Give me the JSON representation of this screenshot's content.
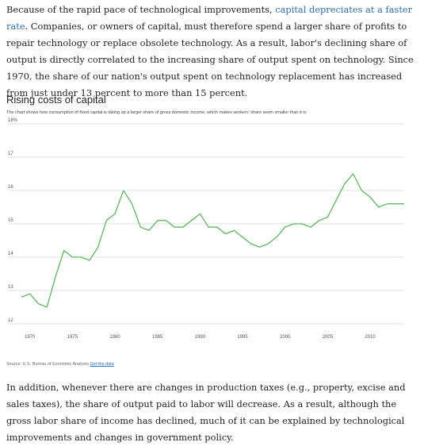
{
  "article": {
    "para1_before": "Because of the rapid pace of technological improvements, ",
    "para1_link": "capital depreciates at a faster rate",
    "para1_after": ". Companies, or owners of capital, must therefore spend a larger share of profits to repair technology or replace obsolete technology. As a result, labor's declining share of output is directly correlated to the increasing share of output spent on technology. Since 1970, the share of our nation's output spent on technology replacement has increased from just under 13 percent to more than 15 percent.",
    "para2": "In addition, whenever there are changes in production taxes (e.g., property, excise and sales taxes), the share of output paid to labor will decrease. As a result, although the gross labor share of income has declined, much of it can be explained by technological improvements and changes in government policy."
  },
  "chart_data": {
    "type": "line",
    "title": "Rising costs of capital",
    "subtitle": "The chart shows how consumption of fixed capital is taking up a larger share of gross domestic income, which makes workers' share seem smaller than it is.",
    "source_label": "Source: U.S. Bureau of Economic Analysis",
    "source_link": "Get the data",
    "xlabel": "",
    "ylabel": "",
    "xlim": [
      1969,
      2014
    ],
    "ylim": [
      12,
      18
    ],
    "x_ticks": [
      "1970",
      "1975",
      "1980",
      "1985",
      "1990",
      "1995",
      "2000",
      "2005",
      "2010"
    ],
    "y_ticks": [
      "18%",
      "17",
      "16",
      "15",
      "14",
      "13",
      "12"
    ],
    "grid": true,
    "line_color": "#5cb85c",
    "series": [
      {
        "x": [
          1969,
          1970,
          1971,
          1972,
          1973,
          1974,
          1975,
          1976,
          1977,
          1978,
          1979,
          1980,
          1981,
          1982,
          1983,
          1984,
          1985,
          1986,
          1987,
          1988,
          1989,
          1990,
          1991,
          1992,
          1993,
          1994,
          1995,
          1996,
          1997,
          1998,
          1999,
          2000,
          2001,
          2002,
          2003,
          2004,
          2005,
          2006,
          2007,
          2008,
          2009,
          2010,
          2011,
          2012,
          2013,
          2014
        ],
        "values": [
          12.8,
          12.9,
          12.6,
          12.5,
          13.4,
          14.2,
          14.0,
          14.0,
          13.9,
          14.3,
          15.1,
          15.3,
          16.0,
          15.6,
          14.9,
          14.8,
          15.1,
          15.1,
          14.9,
          14.9,
          15.1,
          15.3,
          14.9,
          14.9,
          14.7,
          14.8,
          14.6,
          14.4,
          14.3,
          14.4,
          14.6,
          14.9,
          15.0,
          15.0,
          14.9,
          15.1,
          15.2,
          15.7,
          16.2,
          16.5,
          16.0,
          15.8,
          15.5,
          15.6,
          15.6,
          15.6
        ]
      }
    ]
  }
}
